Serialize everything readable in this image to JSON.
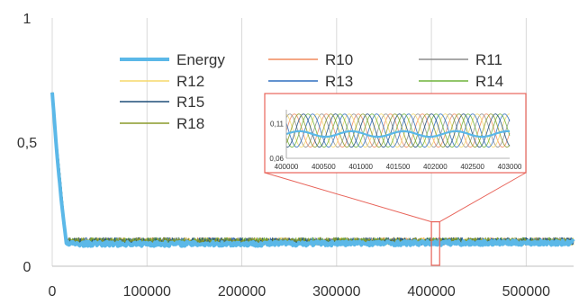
{
  "chart_data": {
    "type": "line",
    "title": "",
    "xlabel": "",
    "ylabel": "",
    "xlim": [
      0,
      550000
    ],
    "ylim": [
      0,
      1
    ],
    "x_ticks": [
      0,
      100000,
      200000,
      300000,
      400000,
      500000
    ],
    "x_tick_labels": [
      "0",
      "100000",
      "200000",
      "300000",
      "400000",
      "500000"
    ],
    "y_ticks": [
      0,
      0.5,
      1
    ],
    "y_tick_labels": [
      "0",
      "0,5",
      "1"
    ],
    "grid": "vertical",
    "legend_placement": "top-left",
    "series": [
      {
        "name": "Energy",
        "color": "#5bb8e8",
        "x": [
          0,
          5000,
          10000,
          15000,
          20000,
          100000,
          200000,
          300000,
          400000,
          500000,
          550000
        ],
        "values": [
          0.7,
          0.45,
          0.25,
          0.09,
          0.09,
          0.09,
          0.09,
          0.092,
          0.093,
          0.094,
          0.094
        ]
      },
      {
        "name": "R10",
        "color": "#f08a5d",
        "x": [
          0,
          15000,
          550000
        ],
        "values": [
          0.7,
          0.1,
          0.1
        ]
      },
      {
        "name": "R11",
        "color": "#8c8c8c",
        "x": [
          0,
          15000,
          550000
        ],
        "values": [
          0.7,
          0.1,
          0.1
        ]
      },
      {
        "name": "R12",
        "color": "#f5d86a",
        "x": [
          0,
          15000,
          550000
        ],
        "values": [
          0.7,
          0.1,
          0.1
        ]
      },
      {
        "name": "R13",
        "color": "#2e6fbf",
        "x": [
          0,
          15000,
          550000
        ],
        "values": [
          0.7,
          0.1,
          0.1
        ]
      },
      {
        "name": "R14",
        "color": "#6fb33a",
        "x": [
          0,
          15000,
          550000
        ],
        "values": [
          0.7,
          0.1,
          0.1
        ]
      },
      {
        "name": "R15",
        "color": "#1f4e79",
        "x": [
          0,
          15000,
          550000
        ],
        "values": [
          0.7,
          0.1,
          0.1
        ]
      },
      {
        "name": "R18",
        "color": "#8a9a2a",
        "x": [
          0,
          15000,
          550000
        ],
        "values": [
          0.7,
          0.1,
          0.1
        ]
      }
    ],
    "inset": {
      "xlim": [
        400000,
        403000
      ],
      "ylim": [
        0.06,
        0.13
      ],
      "x_tick_labels": [
        "400000",
        "400500",
        "401000",
        "401500",
        "402000",
        "402500",
        "403000"
      ],
      "y_tick_labels": [
        "0,06",
        "0,11"
      ],
      "zoom_box_x": [
        400000,
        403000
      ],
      "zoom_box_y": [
        0.04,
        0.15
      ]
    }
  }
}
